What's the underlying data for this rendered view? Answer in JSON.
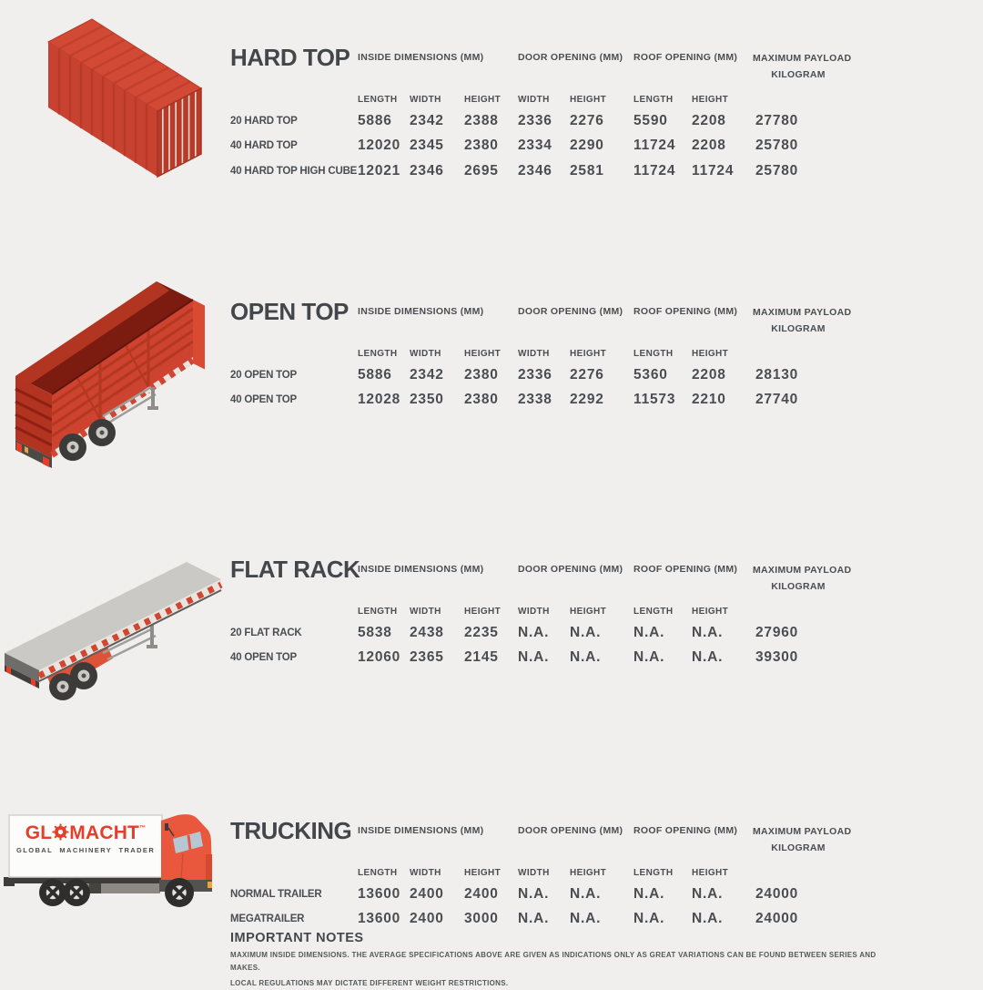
{
  "page": {
    "background": "#f0efed",
    "text_color": "#4a4e53"
  },
  "columns": {
    "groups": [
      {
        "label": "INSIDE DIMENSIONS (MM)"
      },
      {
        "label": "DOOR OPENING (MM)"
      },
      {
        "label": "ROOF OPENING (MM)"
      },
      {
        "label": "MAXIMUM PAYLOAD",
        "label2": "KILOGRAM"
      }
    ],
    "subheaders": [
      "LENGTH",
      "WIDTH",
      "HEIGHT",
      "WIDTH",
      "HEIGHT",
      "LENGTH",
      "HEIGHT"
    ]
  },
  "sections": [
    {
      "title": "HARD TOP",
      "illustration": "red shipping container, isometric",
      "rows": [
        {
          "label": "20 HARD TOP",
          "values": [
            "5886",
            "2342",
            "2388",
            "2336",
            "2276",
            "5590",
            "2208",
            "27780"
          ]
        },
        {
          "label": "40 HARD TOP",
          "values": [
            "12020",
            "2345",
            "2380",
            "2334",
            "2290",
            "11724",
            "2208",
            "25780"
          ]
        },
        {
          "label": "40 HARD TOP HIGH CUBE",
          "values": [
            "12021",
            "2346",
            "2695",
            "2346",
            "2581",
            "11724",
            "11724",
            "25780"
          ]
        }
      ]
    },
    {
      "title": "OPEN TOP",
      "illustration": "red open-top trailer, isometric",
      "rows": [
        {
          "label": "20 OPEN TOP",
          "values": [
            "5886",
            "2342",
            "2380",
            "2336",
            "2276",
            "5360",
            "2208",
            "28130"
          ]
        },
        {
          "label": "40 OPEN TOP",
          "values": [
            "12028",
            "2350",
            "2380",
            "2338",
            "2292",
            "11573",
            "2210",
            "27740"
          ]
        }
      ]
    },
    {
      "title": "FLAT RACK",
      "illustration": "grey flat rack trailer, isometric",
      "rows": [
        {
          "label": "20 FLAT RACK",
          "values": [
            "5838",
            "2438",
            "2235",
            "N.A.",
            "N.A.",
            "N.A.",
            "N.A.",
            "27960"
          ]
        },
        {
          "label": "40 OPEN TOP",
          "values": [
            "12060",
            "2365",
            "2145",
            "N.A.",
            "N.A.",
            "N.A.",
            "N.A.",
            "39300"
          ]
        }
      ]
    },
    {
      "title": "TRUCKING",
      "illustration": "box truck with GLOMACHT livery",
      "rows": [
        {
          "label": "NORMAL TRAILER",
          "values": [
            "13600",
            "2400",
            "2400",
            "N.A.",
            "N.A.",
            "N.A.",
            "N.A.",
            "24000"
          ]
        },
        {
          "label": "MEGATRAILER",
          "values": [
            "13600",
            "2400",
            "3000",
            "N.A.",
            "N.A.",
            "N.A.",
            "N.A.",
            "24000"
          ]
        }
      ]
    }
  ],
  "logo": {
    "prefix": "GL",
    "gear_icon": "gear",
    "suffix": "MACHT",
    "trademark": "™",
    "tagline": "GLOBAL MACHINERY TRADER",
    "color": "#e2402c"
  },
  "notes": {
    "title": "IMPORTANT NOTES",
    "lines": [
      "MAXIMUM INSIDE DIMENSIONS. THE AVERAGE SPECIFICATIONS ABOVE ARE GIVEN AS INDICATIONS ONLY AS GREAT VARIATIONS CAN BE FOUND BETWEEN SERIES AND MAKES.",
      "LOCAL REGULATIONS MAY DICTATE DIFFERENT WEIGHT RESTRICTIONS."
    ]
  },
  "colors": {
    "container_red": "#cd4330",
    "container_red_dark": "#b23420",
    "container_red_deep": "#8e2013",
    "flatbed_grey": "#cbc9c5",
    "truck_cab_orange": "#e9573c",
    "logo_red": "#e2402c"
  }
}
